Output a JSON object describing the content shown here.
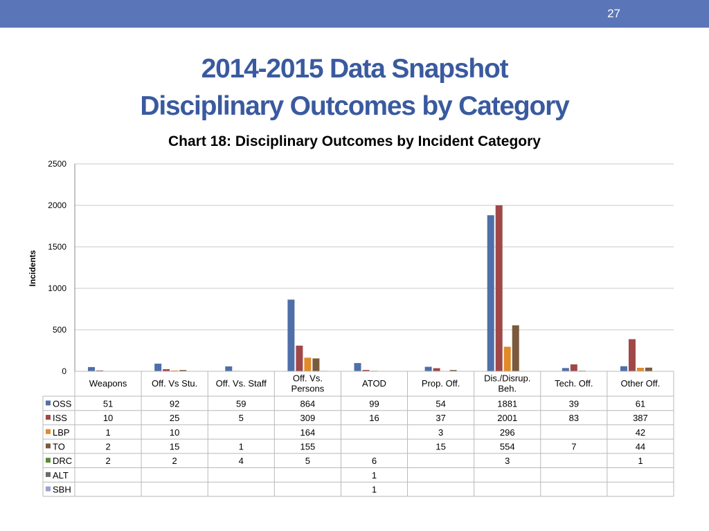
{
  "page_number": "27",
  "title_line1": "2014-2015 Data Snapshot",
  "title_line2": "Disciplinary Outcomes by Category",
  "chart_data": {
    "type": "bar",
    "title": "Chart 18: Disciplinary Outcomes by  Incident Category",
    "ylabel": "Incidents",
    "xlabel": "",
    "ylim": [
      0,
      2500
    ],
    "yticks": [
      0,
      500,
      1000,
      1500,
      2000,
      2500
    ],
    "grid": true,
    "legend": "data-table",
    "categories": [
      "Weapons",
      "Off. Vs Stu.",
      "Off. Vs. Staff",
      "Off. Vs. Persons",
      "ATOD",
      "Prop. Off.",
      "Dis./Disrup. Beh.",
      "Tech. Off.",
      "Other Off."
    ],
    "category_lines": [
      [
        "Weapons"
      ],
      [
        "Off. Vs Stu."
      ],
      [
        "Off. Vs. Staff"
      ],
      [
        "Off. Vs.",
        "Persons"
      ],
      [
        "ATOD"
      ],
      [
        "Prop. Off."
      ],
      [
        "Dis./Disrup.",
        "Beh."
      ],
      [
        "Tech. Off."
      ],
      [
        "Other Off."
      ]
    ],
    "series": [
      {
        "name": "OSS",
        "color": "#4f6fa8",
        "values": [
          51,
          92,
          59,
          864,
          99,
          54,
          1881,
          39,
          61
        ]
      },
      {
        "name": "ISS",
        "color": "#a04848",
        "values": [
          10,
          25,
          5,
          309,
          16,
          37,
          2001,
          83,
          387
        ]
      },
      {
        "name": "LBP",
        "color": "#e08a2a",
        "values": [
          1,
          10,
          null,
          164,
          null,
          3,
          296,
          null,
          42
        ]
      },
      {
        "name": "TO",
        "color": "#7a5a3c",
        "values": [
          2,
          15,
          1,
          155,
          null,
          15,
          554,
          7,
          44
        ]
      },
      {
        "name": "DRC",
        "color": "#5a8a3a",
        "values": [
          2,
          2,
          4,
          5,
          6,
          null,
          3,
          null,
          1
        ]
      },
      {
        "name": "ALT",
        "color": "#6a6a6a",
        "values": [
          null,
          null,
          null,
          null,
          1,
          null,
          null,
          null,
          null
        ]
      },
      {
        "name": "SBH",
        "color": "#9aa2d0",
        "values": [
          null,
          null,
          null,
          null,
          1,
          null,
          null,
          null,
          null
        ]
      }
    ]
  }
}
